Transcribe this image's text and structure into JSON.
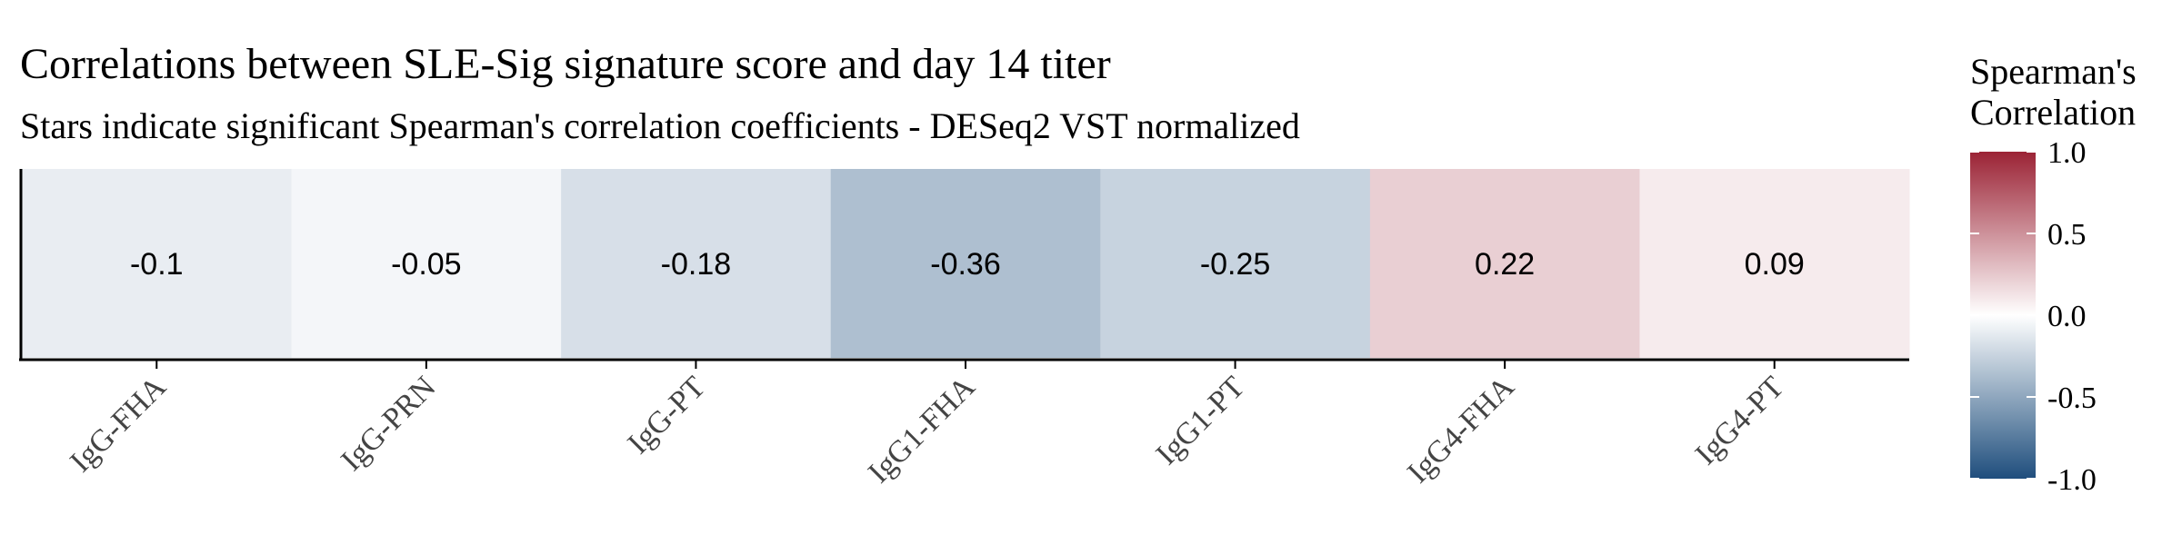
{
  "chart_data": {
    "type": "heatmap",
    "title": "Correlations between SLE-Sig signature score and day 14 titer",
    "subtitle": "Stars indicate significant Spearman's correlation coefficients - DESeq2 VST normalized",
    "categories": [
      "IgG-FHA",
      "IgG-PRN",
      "IgG-PT",
      "IgG1-FHA",
      "IgG1-PT",
      "IgG4-FHA",
      "IgG4-PT"
    ],
    "values": [
      -0.1,
      -0.05,
      -0.18,
      -0.36,
      -0.25,
      0.22,
      0.09
    ],
    "value_labels": [
      "-0.1",
      "-0.05",
      "-0.18",
      "-0.36",
      "-0.25",
      "0.22",
      "0.09"
    ],
    "legend": {
      "title_line1": "Spearman's",
      "title_line2": "Correlation",
      "range": [
        -1.0,
        1.0
      ],
      "ticks": [
        1.0,
        0.5,
        0.0,
        -0.5,
        -1.0
      ],
      "tick_labels": [
        "1.0",
        "0.5",
        "0.0",
        "-0.5",
        "-1.0"
      ],
      "placement": "right"
    },
    "colors": {
      "low": "#1f4e7d",
      "mid": "#ffffff",
      "high": "#9b2335"
    },
    "grid": false
  }
}
